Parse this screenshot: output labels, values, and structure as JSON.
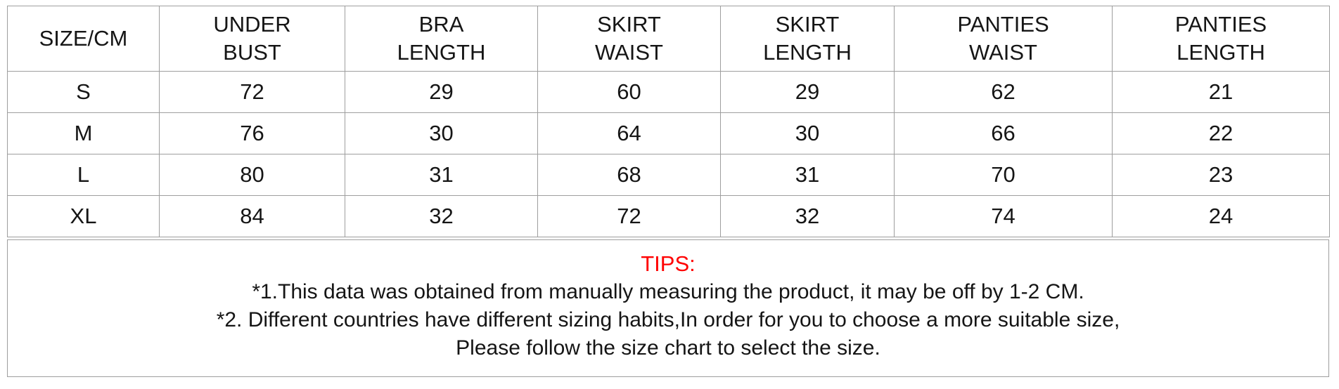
{
  "chart_data": {
    "type": "table",
    "title": "SIZE/CM",
    "columns": [
      "SIZE/CM",
      "UNDER BUST",
      "BRA LENGTH",
      "SKIRT WAIST",
      "SKIRT LENGTH",
      "PANTIES WAIST",
      "PANTIES LENGTH"
    ],
    "rows": [
      {
        "size": "S",
        "under_bust": 72,
        "bra_length": 29,
        "skirt_waist": 60,
        "skirt_length": 29,
        "panties_waist": 62,
        "panties_length": 21
      },
      {
        "size": "M",
        "under_bust": 76,
        "bra_length": 30,
        "skirt_waist": 64,
        "skirt_length": 30,
        "panties_waist": 66,
        "panties_length": 22
      },
      {
        "size": "L",
        "under_bust": 80,
        "bra_length": 31,
        "skirt_waist": 68,
        "skirt_length": 31,
        "panties_waist": 70,
        "panties_length": 23
      },
      {
        "size": "XL",
        "under_bust": 84,
        "bra_length": 32,
        "skirt_waist": 72,
        "skirt_length": 32,
        "panties_waist": 74,
        "panties_length": 24
      }
    ]
  },
  "table": {
    "headers": [
      "SIZE/CM",
      "UNDER\nBUST",
      "BRA\nLENGTH",
      "SKIRT\nWAIST",
      "SKIRT\nLENGTH",
      "PANTIES\nWAIST",
      "PANTIES\nLENGTH"
    ],
    "rows": [
      {
        "size": "S",
        "values": [
          "72",
          "29",
          "60",
          "29",
          "62",
          "21"
        ]
      },
      {
        "size": "M",
        "values": [
          "76",
          "30",
          "64",
          "30",
          "66",
          "22"
        ]
      },
      {
        "size": "L",
        "values": [
          "80",
          "31",
          "68",
          "31",
          "70",
          "23"
        ]
      },
      {
        "size": "XL",
        "values": [
          "84",
          "32",
          "72",
          "32",
          "74",
          "24"
        ]
      }
    ]
  },
  "tips": {
    "title": "TIPS:",
    "lines": [
      "*1.This data was obtained from manually measuring the product, it may be off by 1-2 CM.",
      "*2. Different countries have different sizing habits,In order for you to choose a more suitable size,",
      "Please follow the size chart to select the size."
    ]
  },
  "colors": {
    "tips_title": "#ff0000",
    "border": "#9e9e9e",
    "text": "#151515",
    "background": "#ffffff"
  }
}
